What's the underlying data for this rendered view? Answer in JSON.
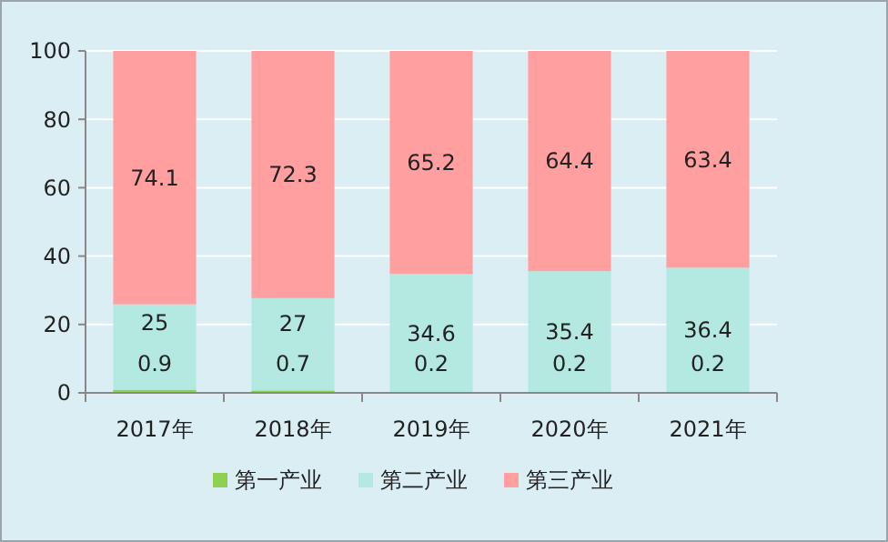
{
  "chart_data": {
    "type": "bar",
    "stacked": true,
    "categories": [
      "2017年",
      "2018年",
      "2019年",
      "2020年",
      "2021年"
    ],
    "series": [
      {
        "name": "第一产业",
        "color": "#8fd14f",
        "values": [
          0.9,
          0.7,
          0.2,
          0.2,
          0.2
        ]
      },
      {
        "name": "第二产业",
        "color": "#b3e9e1",
        "values": [
          25,
          27,
          34.6,
          35.4,
          36.4
        ]
      },
      {
        "name": "第三产业",
        "color": "#ff9f9f",
        "values": [
          74.1,
          72.3,
          65.2,
          64.4,
          63.4
        ]
      }
    ],
    "ylim": [
      0,
      100
    ],
    "yticks": [
      0,
      20,
      40,
      60,
      80,
      100
    ],
    "grid": "y",
    "legend": "bottom",
    "data_labels": true
  }
}
